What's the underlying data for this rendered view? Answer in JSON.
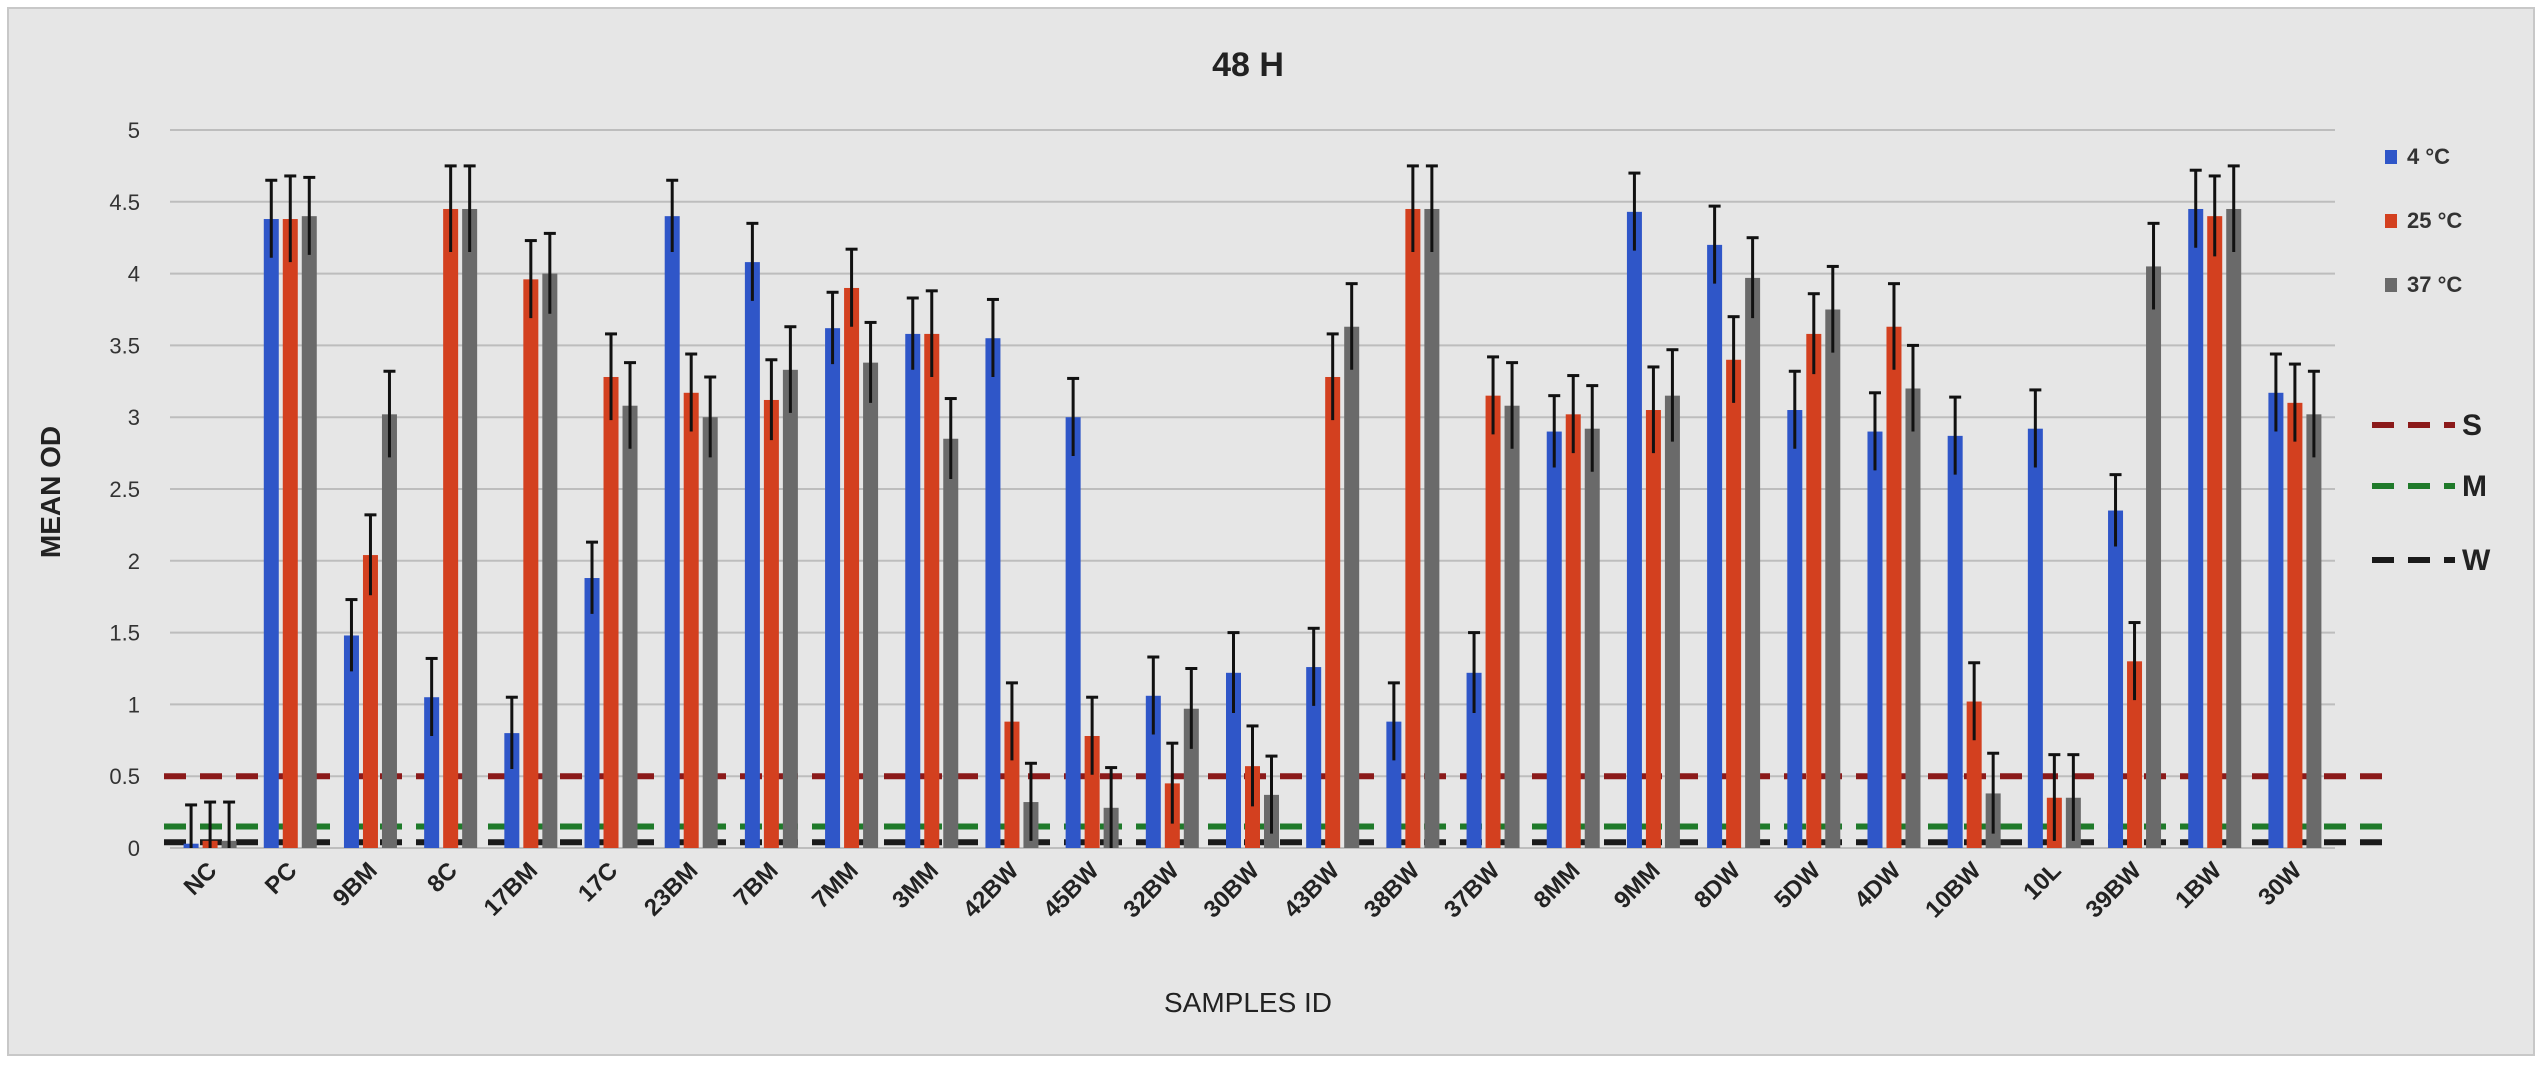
{
  "chart_data": {
    "type": "bar",
    "title": "48 H",
    "xlabel": "SAMPLES ID",
    "ylabel": "MEAN OD",
    "ylim": [
      0,
      5
    ],
    "yticks": [
      0,
      0.5,
      1,
      1.5,
      2,
      2.5,
      3,
      3.5,
      4,
      4.5,
      5
    ],
    "ytick_labels": [
      "0",
      "0.5",
      "1",
      "1.5",
      "2",
      "2.5",
      "3",
      "3.5",
      "4",
      "4.5",
      "5"
    ],
    "grid": true,
    "legend_position": "right",
    "categories": [
      "NC",
      "PC",
      "9BM",
      "8C",
      "17BM",
      "17C",
      "23BM",
      "7BM",
      "7MM",
      "3MM",
      "42BW",
      "45BW",
      "32BW",
      "30BW",
      "43BW",
      "38BW",
      "37BW",
      "8MM",
      "9MM",
      "8DW",
      "5DW",
      "4DW",
      "10BW",
      "10L",
      "39BW",
      "1BW",
      "30W"
    ],
    "series": [
      {
        "name": "4 °C",
        "color": "#2f56c8",
        "values": [
          0.03,
          4.38,
          1.48,
          1.05,
          0.8,
          1.88,
          4.4,
          4.08,
          3.62,
          3.58,
          3.55,
          3.0,
          1.06,
          1.22,
          1.26,
          0.88,
          1.22,
          2.9,
          4.43,
          4.2,
          3.05,
          2.9,
          2.87,
          2.92,
          2.35,
          4.45,
          3.17
        ],
        "errors": [
          0.27,
          0.27,
          0.25,
          0.27,
          0.25,
          0.25,
          0.25,
          0.27,
          0.25,
          0.25,
          0.27,
          0.27,
          0.27,
          0.28,
          0.27,
          0.27,
          0.28,
          0.25,
          0.27,
          0.27,
          0.27,
          0.27,
          0.27,
          0.27,
          0.25,
          0.27,
          0.27
        ]
      },
      {
        "name": "25 °C",
        "color": "#d3401f",
        "values": [
          0.05,
          4.38,
          2.04,
          4.45,
          3.96,
          3.28,
          3.17,
          3.12,
          3.9,
          3.58,
          0.88,
          0.78,
          0.45,
          0.57,
          3.28,
          4.45,
          3.15,
          3.02,
          3.05,
          3.4,
          3.58,
          3.63,
          1.02,
          0.35,
          1.3,
          4.4,
          3.1
        ],
        "errors": [
          0.27,
          0.3,
          0.28,
          0.3,
          0.27,
          0.3,
          0.27,
          0.28,
          0.27,
          0.3,
          0.27,
          0.27,
          0.28,
          0.28,
          0.3,
          0.3,
          0.27,
          0.27,
          0.3,
          0.3,
          0.28,
          0.3,
          0.27,
          0.3,
          0.27,
          0.28,
          0.27
        ]
      },
      {
        "name": "37 °C",
        "color": "#6a6a6a",
        "values": [
          0.05,
          4.4,
          3.02,
          4.45,
          4.0,
          3.08,
          3.0,
          3.33,
          3.38,
          2.85,
          0.32,
          0.28,
          0.97,
          0.37,
          3.63,
          4.45,
          3.08,
          2.92,
          3.15,
          3.97,
          3.75,
          3.2,
          0.38,
          0.35,
          4.05,
          4.45,
          3.02
        ],
        "errors": [
          0.27,
          0.27,
          0.3,
          0.3,
          0.28,
          0.3,
          0.28,
          0.3,
          0.28,
          0.28,
          0.27,
          0.28,
          0.28,
          0.27,
          0.3,
          0.3,
          0.3,
          0.3,
          0.32,
          0.28,
          0.3,
          0.3,
          0.28,
          0.3,
          0.3,
          0.3,
          0.3
        ]
      }
    ],
    "reference_lines": [
      {
        "name": "S",
        "value": 0.5,
        "color": "#8b1a1a"
      },
      {
        "name": "M",
        "value": 0.15,
        "color": "#1f7a2a"
      },
      {
        "name": "W",
        "value": 0.04,
        "color": "#1a1a1a"
      }
    ]
  }
}
